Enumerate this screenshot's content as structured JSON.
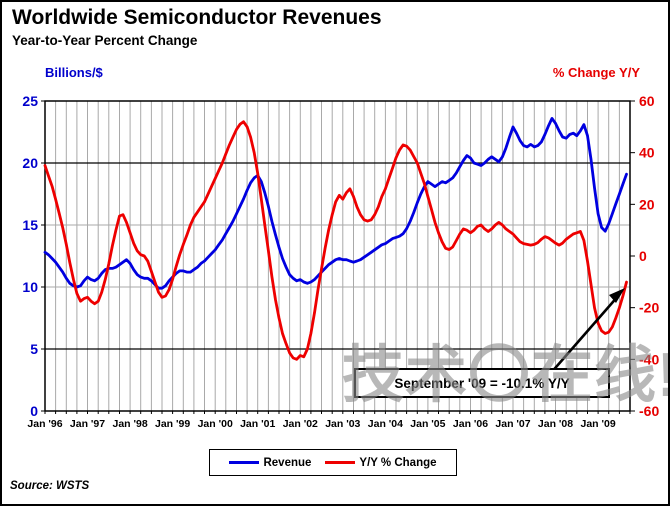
{
  "header": {
    "title": "Worldwide Semiconductor Revenues",
    "subtitle": "Year-to-Year Percent Change"
  },
  "source": "Source: WSTS",
  "watermark": "技术〇在线!",
  "chart_data": {
    "type": "line",
    "title": "Worldwide Semiconductor Revenues",
    "subtitle": "Year-to-Year Percent Change",
    "x_start": "Jan 1996",
    "x_end": "Sep 2009",
    "x_months_total": 165,
    "x_tick_labels": [
      "Jan '96",
      "Jan '97",
      "Jan '98",
      "Jan '99",
      "Jan '00",
      "Jan '01",
      "Jan '02",
      "Jan '03",
      "Jan '04",
      "Jan '05",
      "Jan '06",
      "Jan '07",
      "Jan '08",
      "Jan '09"
    ],
    "grid": {
      "vertical_every_months": 3,
      "gray_color": "#a9a9a9",
      "dark_rows_left_values": [
        20,
        5
      ],
      "gray_rows_left_values": [
        15,
        10
      ]
    },
    "left_axis": {
      "title": "Billions/$",
      "min": 0,
      "max": 25,
      "ticks": [
        25,
        20,
        15,
        10,
        5,
        0
      ],
      "color": "#0000cc"
    },
    "right_axis": {
      "title": "% Change Y/Y",
      "min": -60,
      "max": 60,
      "ticks": [
        60,
        40,
        20,
        0,
        -20,
        -40,
        -60
      ],
      "color": "#e60000"
    },
    "legend_position": "bottom-center",
    "series": [
      {
        "name": "Revenue",
        "axis": "left",
        "color": "#0000e0",
        "values": [
          12.8,
          12.6,
          12.3,
          12.0,
          11.6,
          11.2,
          10.7,
          10.3,
          10.1,
          10.0,
          10.1,
          10.5,
          10.8,
          10.6,
          10.5,
          10.7,
          11.1,
          11.4,
          11.5,
          11.5,
          11.6,
          11.8,
          12.0,
          12.2,
          11.9,
          11.4,
          11.0,
          10.8,
          10.7,
          10.7,
          10.5,
          10.2,
          9.9,
          9.9,
          10.1,
          10.5,
          10.8,
          11.1,
          11.3,
          11.3,
          11.2,
          11.2,
          11.4,
          11.6,
          11.9,
          12.1,
          12.4,
          12.7,
          13.0,
          13.4,
          13.8,
          14.3,
          14.8,
          15.3,
          15.9,
          16.5,
          17.1,
          17.8,
          18.4,
          18.8,
          19.0,
          18.5,
          17.6,
          16.5,
          15.3,
          14.2,
          13.2,
          12.3,
          11.6,
          11.0,
          10.7,
          10.5,
          10.6,
          10.4,
          10.3,
          10.4,
          10.6,
          10.9,
          11.2,
          11.5,
          11.8,
          12.0,
          12.2,
          12.3,
          12.2,
          12.2,
          12.1,
          12.0,
          12.1,
          12.2,
          12.4,
          12.6,
          12.8,
          13.0,
          13.2,
          13.4,
          13.5,
          13.7,
          13.9,
          14.0,
          14.1,
          14.3,
          14.7,
          15.3,
          16.0,
          16.8,
          17.5,
          18.1,
          18.5,
          18.3,
          18.1,
          18.3,
          18.5,
          18.4,
          18.6,
          18.8,
          19.2,
          19.7,
          20.2,
          20.6,
          20.4,
          20.0,
          19.9,
          19.8,
          20.0,
          20.3,
          20.5,
          20.3,
          20.1,
          20.5,
          21.2,
          22.1,
          22.9,
          22.4,
          21.8,
          21.4,
          21.3,
          21.5,
          21.3,
          21.4,
          21.7,
          22.3,
          23.0,
          23.6,
          23.2,
          22.6,
          22.1,
          22.0,
          22.3,
          22.4,
          22.2,
          22.6,
          23.1,
          22.2,
          20.3,
          18.0,
          15.9,
          14.8,
          14.5,
          15.1,
          15.9,
          16.7,
          17.5,
          18.3,
          19.1
        ]
      },
      {
        "name": "Y/Y % Change",
        "axis": "right",
        "color": "#ee0000",
        "values": [
          35,
          31,
          27,
          22,
          16.5,
          11,
          4.5,
          -2.5,
          -9,
          -14.5,
          -17.5,
          -16.5,
          -16,
          -17.5,
          -18.5,
          -17.5,
          -14,
          -9,
          -3,
          4,
          10,
          15.5,
          16,
          13,
          9,
          5,
          2,
          0.5,
          0,
          -2,
          -6,
          -10,
          -14,
          -16,
          -15.5,
          -13,
          -9,
          -4,
          0.5,
          4.5,
          8,
          12,
          15,
          17,
          19,
          21,
          24,
          27,
          30,
          33,
          36,
          39.5,
          43,
          46,
          49,
          51,
          52,
          50,
          46,
          40,
          32,
          22,
          12,
          2,
          -8,
          -17,
          -24,
          -30,
          -34,
          -37.5,
          -39.5,
          -40,
          -38.5,
          -39,
          -36,
          -30,
          -22,
          -13,
          -5,
          3,
          10,
          16,
          21,
          23.5,
          22,
          24.5,
          26,
          23,
          19,
          16,
          14,
          13.5,
          14,
          16,
          19,
          23,
          26,
          30,
          34,
          38,
          41,
          43,
          42.5,
          41,
          38.5,
          36,
          32,
          28,
          23,
          18,
          13,
          9,
          5.5,
          3,
          2.5,
          3.5,
          6,
          8.5,
          10.5,
          10,
          9,
          10,
          11.5,
          12,
          10.5,
          9.5,
          10.5,
          12,
          13,
          12,
          10.5,
          9.5,
          8.5,
          7,
          5.5,
          4.8,
          4.5,
          4.2,
          4.5,
          5.2,
          6.5,
          7.5,
          7,
          6,
          5,
          4.2,
          5,
          6.5,
          7.5,
          8.5,
          9,
          9.5,
          6,
          -2,
          -11,
          -20,
          -26,
          -29,
          -30,
          -29.5,
          -27.5,
          -24,
          -20,
          -15.5,
          -10.1
        ]
      }
    ],
    "annotation": {
      "text": "September '09 = -10.1% Y/Y",
      "arrow_points_to": "end of Y/Y % Change line"
    }
  },
  "legend": {
    "items": [
      {
        "label": "Revenue",
        "color": "#0000e0"
      },
      {
        "label": "Y/Y % Change",
        "color": "#ee0000"
      }
    ]
  }
}
